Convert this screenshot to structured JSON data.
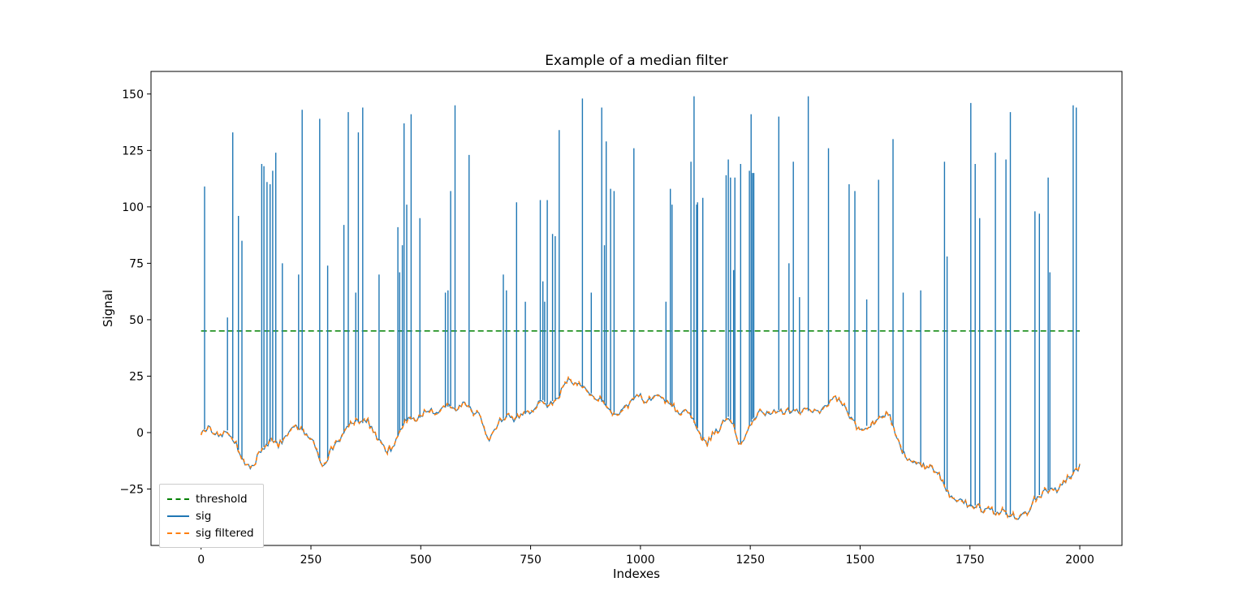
{
  "chart_data": {
    "type": "line",
    "title": "Example of a median filter",
    "xlabel": "Indexes",
    "ylabel": "Signal",
    "xlim": [
      -114,
      2096
    ],
    "ylim": [
      -50,
      160
    ],
    "xticks": [
      0,
      250,
      500,
      750,
      1000,
      1250,
      1500,
      1750,
      2000
    ],
    "yticks": [
      -25,
      0,
      25,
      50,
      75,
      100,
      125,
      150
    ],
    "ytick_labels": [
      "−25",
      "0",
      "25",
      "50",
      "75",
      "100",
      "125",
      "150"
    ],
    "grid": false,
    "threshold": {
      "label": "threshold",
      "value": 45,
      "color": "#008000",
      "style": "dashed"
    },
    "legend": {
      "position": "lower left",
      "items": [
        {
          "label": "threshold",
          "color": "#008000",
          "style": "dashed"
        },
        {
          "label": "sig",
          "color": "#1f77b4",
          "style": "solid"
        },
        {
          "label": "sig filtered",
          "color": "#ff7f0e",
          "style": "dashed"
        }
      ]
    },
    "series": [
      {
        "name": "sig",
        "color": "#1f77b4",
        "style": "solid",
        "baseline": [
          [
            0,
            1
          ],
          [
            20,
            2
          ],
          [
            40,
            -2
          ],
          [
            60,
            1
          ],
          [
            80,
            -5
          ],
          [
            95,
            -13
          ],
          [
            110,
            -15
          ],
          [
            120,
            -14
          ],
          [
            135,
            -8
          ],
          [
            150,
            -5
          ],
          [
            165,
            -3
          ],
          [
            175,
            -6
          ],
          [
            190,
            -2
          ],
          [
            200,
            0
          ],
          [
            215,
            2
          ],
          [
            230,
            1
          ],
          [
            245,
            -2
          ],
          [
            255,
            -4
          ],
          [
            265,
            -10
          ],
          [
            275,
            -15
          ],
          [
            285,
            -13
          ],
          [
            295,
            -8
          ],
          [
            310,
            -4
          ],
          [
            320,
            -2
          ],
          [
            335,
            3
          ],
          [
            350,
            5
          ],
          [
            365,
            4
          ],
          [
            380,
            5
          ],
          [
            395,
            0
          ],
          [
            410,
            -5
          ],
          [
            420,
            -8
          ],
          [
            435,
            -7
          ],
          [
            445,
            -3
          ],
          [
            455,
            2
          ],
          [
            465,
            5
          ],
          [
            475,
            6
          ],
          [
            490,
            5
          ],
          [
            500,
            7
          ],
          [
            510,
            9
          ],
          [
            525,
            10
          ],
          [
            540,
            9
          ],
          [
            555,
            11
          ],
          [
            570,
            12
          ],
          [
            580,
            10
          ],
          [
            590,
            12
          ],
          [
            600,
            13
          ],
          [
            615,
            10
          ],
          [
            630,
            8
          ],
          [
            640,
            5
          ],
          [
            650,
            -2
          ],
          [
            655,
            -4
          ],
          [
            665,
            0
          ],
          [
            675,
            4
          ],
          [
            685,
            6
          ],
          [
            700,
            7
          ],
          [
            710,
            5
          ],
          [
            720,
            7
          ],
          [
            735,
            8
          ],
          [
            750,
            9
          ],
          [
            765,
            13
          ],
          [
            775,
            15
          ],
          [
            790,
            12
          ],
          [
            800,
            14
          ],
          [
            815,
            16
          ],
          [
            830,
            23
          ],
          [
            840,
            23
          ],
          [
            850,
            21
          ],
          [
            860,
            22
          ],
          [
            870,
            20
          ],
          [
            880,
            19
          ],
          [
            890,
            17
          ],
          [
            900,
            15
          ],
          [
            910,
            14
          ],
          [
            920,
            12
          ],
          [
            930,
            10
          ],
          [
            940,
            8
          ],
          [
            950,
            7
          ],
          [
            960,
            10
          ],
          [
            975,
            13
          ],
          [
            985,
            15
          ],
          [
            1000,
            16
          ],
          [
            1010,
            14
          ],
          [
            1025,
            15
          ],
          [
            1040,
            17
          ],
          [
            1050,
            15
          ],
          [
            1060,
            13
          ],
          [
            1070,
            12
          ],
          [
            1080,
            10
          ],
          [
            1090,
            9
          ],
          [
            1100,
            10
          ],
          [
            1110,
            8
          ],
          [
            1120,
            5
          ],
          [
            1130,
            2
          ],
          [
            1140,
            -3
          ],
          [
            1150,
            -5
          ],
          [
            1160,
            -2
          ],
          [
            1170,
            0
          ],
          [
            1180,
            2
          ],
          [
            1190,
            5
          ],
          [
            1200,
            7
          ],
          [
            1210,
            4
          ],
          [
            1220,
            -2
          ],
          [
            1225,
            -6
          ],
          [
            1235,
            -3
          ],
          [
            1245,
            2
          ],
          [
            1255,
            6
          ],
          [
            1265,
            8
          ],
          [
            1275,
            9
          ],
          [
            1285,
            8
          ],
          [
            1300,
            9
          ],
          [
            1315,
            10
          ],
          [
            1330,
            9
          ],
          [
            1345,
            10
          ],
          [
            1360,
            9
          ],
          [
            1375,
            10
          ],
          [
            1390,
            9
          ],
          [
            1400,
            10
          ],
          [
            1410,
            9
          ],
          [
            1420,
            11
          ],
          [
            1435,
            14
          ],
          [
            1445,
            15
          ],
          [
            1455,
            13
          ],
          [
            1465,
            11
          ],
          [
            1475,
            8
          ],
          [
            1485,
            5
          ],
          [
            1495,
            2
          ],
          [
            1505,
            1
          ],
          [
            1515,
            3
          ],
          [
            1525,
            4
          ],
          [
            1535,
            5
          ],
          [
            1545,
            7
          ],
          [
            1555,
            8
          ],
          [
            1565,
            9
          ],
          [
            1575,
            3
          ],
          [
            1585,
            -3
          ],
          [
            1595,
            -8
          ],
          [
            1605,
            -11
          ],
          [
            1615,
            -13
          ],
          [
            1625,
            -12
          ],
          [
            1635,
            -14
          ],
          [
            1645,
            -15
          ],
          [
            1655,
            -14
          ],
          [
            1665,
            -16
          ],
          [
            1675,
            -18
          ],
          [
            1685,
            -20
          ],
          [
            1695,
            -25
          ],
          [
            1705,
            -28
          ],
          [
            1715,
            -30
          ],
          [
            1725,
            -31
          ],
          [
            1735,
            -30
          ],
          [
            1745,
            -32
          ],
          [
            1755,
            -33
          ],
          [
            1765,
            -32
          ],
          [
            1775,
            -34
          ],
          [
            1785,
            -35
          ],
          [
            1795,
            -34
          ],
          [
            1805,
            -35
          ],
          [
            1815,
            -36
          ],
          [
            1825,
            -35
          ],
          [
            1835,
            -37
          ],
          [
            1845,
            -36
          ],
          [
            1855,
            -38
          ],
          [
            1865,
            -37
          ],
          [
            1875,
            -36
          ],
          [
            1885,
            -34
          ],
          [
            1895,
            -30
          ],
          [
            1905,
            -28
          ],
          [
            1915,
            -27
          ],
          [
            1925,
            -26
          ],
          [
            1935,
            -25
          ],
          [
            1945,
            -26
          ],
          [
            1955,
            -24
          ],
          [
            1965,
            -22
          ],
          [
            1975,
            -20
          ],
          [
            1985,
            -18
          ],
          [
            2000,
            -15
          ]
        ],
        "spikes": [
          [
            8,
            109
          ],
          [
            60,
            51
          ],
          [
            72,
            133
          ],
          [
            85,
            96
          ],
          [
            93,
            85
          ],
          [
            138,
            119
          ],
          [
            143,
            118
          ],
          [
            150,
            111
          ],
          [
            157,
            110
          ],
          [
            163,
            116
          ],
          [
            170,
            124
          ],
          [
            185,
            75
          ],
          [
            222,
            70
          ],
          [
            230,
            143
          ],
          [
            270,
            139
          ],
          [
            288,
            74
          ],
          [
            325,
            92
          ],
          [
            335,
            142
          ],
          [
            352,
            62
          ],
          [
            358,
            133
          ],
          [
            368,
            144
          ],
          [
            405,
            70
          ],
          [
            448,
            91
          ],
          [
            452,
            71
          ],
          [
            458,
            83
          ],
          [
            462,
            137
          ],
          [
            468,
            101
          ],
          [
            478,
            141
          ],
          [
            498,
            95
          ],
          [
            556,
            62
          ],
          [
            562,
            63
          ],
          [
            568,
            107
          ],
          [
            578,
            145
          ],
          [
            610,
            123
          ],
          [
            688,
            70
          ],
          [
            695,
            63
          ],
          [
            718,
            102
          ],
          [
            738,
            58
          ],
          [
            772,
            103
          ],
          [
            778,
            67
          ],
          [
            782,
            58
          ],
          [
            788,
            103
          ],
          [
            800,
            88
          ],
          [
            806,
            87
          ],
          [
            815,
            134
          ],
          [
            868,
            148
          ],
          [
            888,
            62
          ],
          [
            912,
            144
          ],
          [
            918,
            83
          ],
          [
            922,
            129
          ],
          [
            932,
            108
          ],
          [
            940,
            107
          ],
          [
            985,
            126
          ],
          [
            1058,
            58
          ],
          [
            1068,
            108
          ],
          [
            1072,
            101
          ],
          [
            1115,
            120
          ],
          [
            1122,
            149
          ],
          [
            1128,
            101
          ],
          [
            1130,
            102
          ],
          [
            1142,
            104
          ],
          [
            1195,
            114
          ],
          [
            1200,
            121
          ],
          [
            1205,
            113
          ],
          [
            1212,
            72
          ],
          [
            1215,
            113
          ],
          [
            1228,
            119
          ],
          [
            1248,
            116
          ],
          [
            1252,
            141
          ],
          [
            1255,
            115
          ],
          [
            1258,
            115
          ],
          [
            1315,
            140
          ],
          [
            1338,
            75
          ],
          [
            1348,
            120
          ],
          [
            1362,
            60
          ],
          [
            1382,
            149
          ],
          [
            1428,
            126
          ],
          [
            1475,
            110
          ],
          [
            1488,
            107
          ],
          [
            1515,
            59
          ],
          [
            1542,
            112
          ],
          [
            1575,
            130
          ],
          [
            1598,
            62
          ],
          [
            1638,
            63
          ],
          [
            1692,
            120
          ],
          [
            1698,
            78
          ],
          [
            1752,
            146
          ],
          [
            1762,
            119
          ],
          [
            1772,
            95
          ],
          [
            1808,
            124
          ],
          [
            1832,
            121
          ],
          [
            1842,
            142
          ],
          [
            1898,
            98
          ],
          [
            1908,
            97
          ],
          [
            1928,
            113
          ],
          [
            1932,
            71
          ],
          [
            1985,
            145
          ],
          [
            1992,
            144
          ]
        ]
      },
      {
        "name": "sig filtered",
        "color": "#ff7f0e",
        "style": "dashed",
        "note": "follows the baseline of sig with spikes removed"
      }
    ]
  }
}
